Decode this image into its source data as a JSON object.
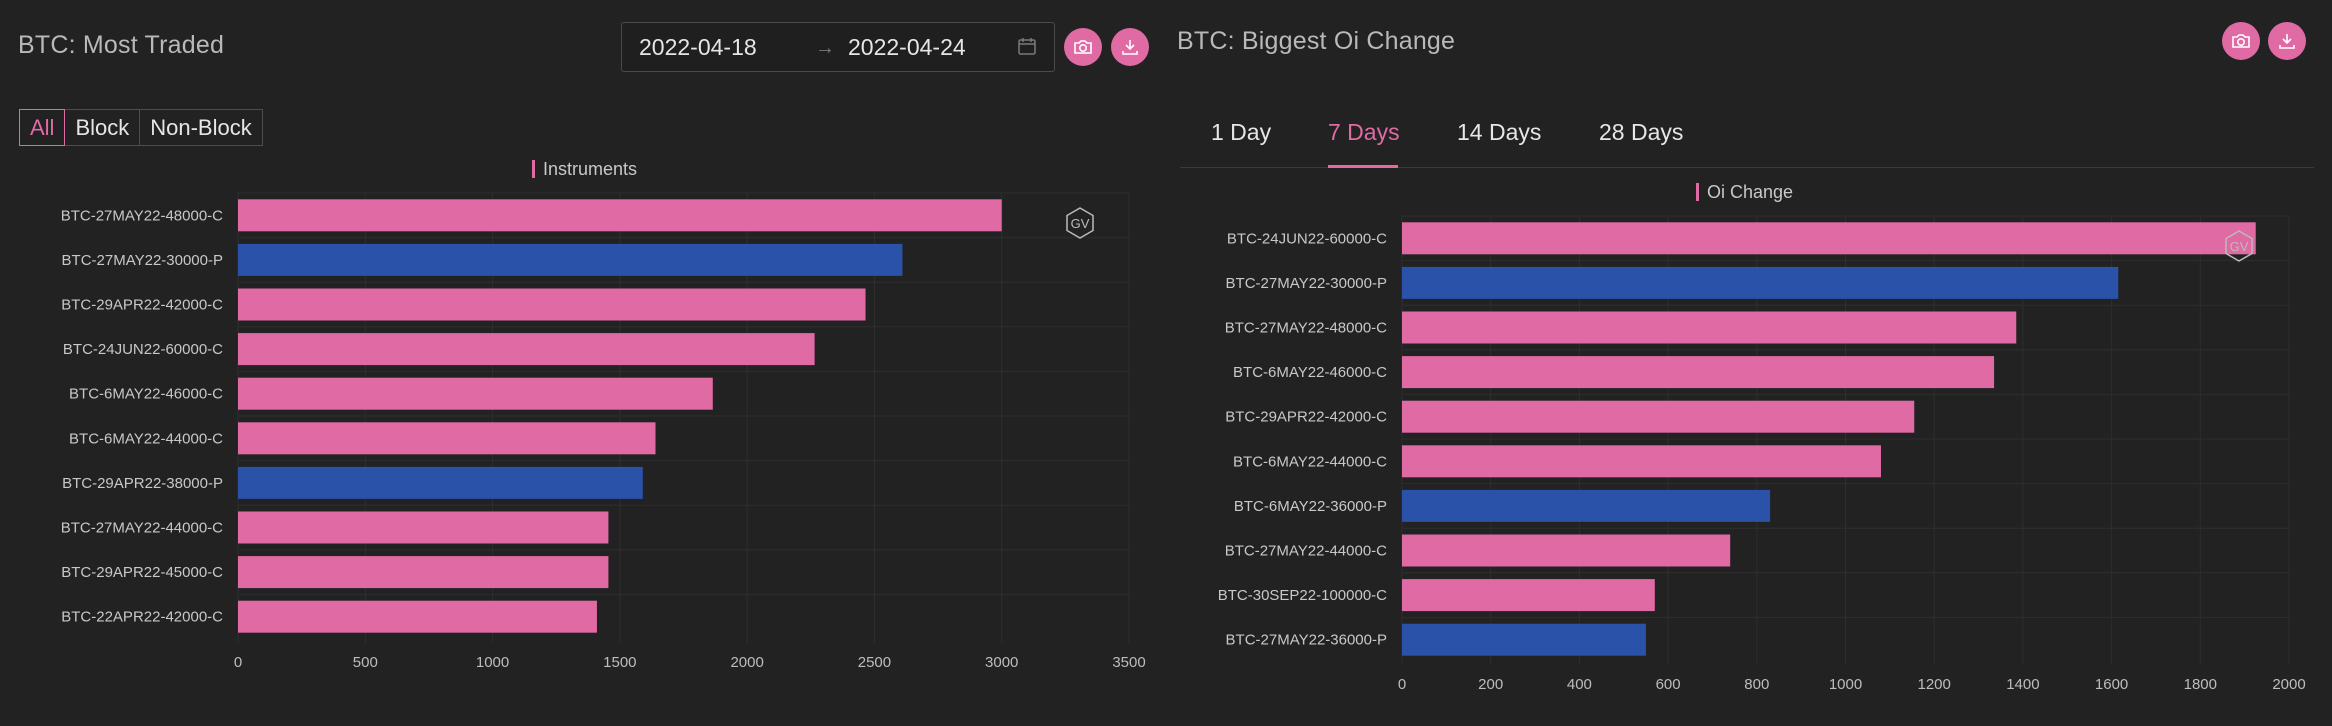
{
  "left": {
    "title": "BTC: Most Traded",
    "date_start": "2022-04-18",
    "date_end": "2022-04-24",
    "arrow": "→",
    "filters": [
      "All",
      "Block",
      "Non-Block"
    ],
    "active_filter": "All"
  },
  "right": {
    "title": "BTC: Biggest Oi Change",
    "tabs": [
      "1 Day",
      "7 Days",
      "14 Days",
      "28 Days"
    ],
    "active_tab": "7 Days"
  },
  "watermark": "GV",
  "colors": {
    "call": "#e06aa4",
    "put": "#2a52a8",
    "accent": "#e06aa4"
  },
  "chart_data": [
    {
      "type": "bar",
      "orientation": "horizontal",
      "legend": "Instruments",
      "categories": [
        "BTC-27MAY22-48000-C",
        "BTC-27MAY22-30000-P",
        "BTC-29APR22-42000-C",
        "BTC-24JUN22-60000-C",
        "BTC-6MAY22-46000-C",
        "BTC-6MAY22-44000-C",
        "BTC-29APR22-38000-P",
        "BTC-27MAY22-44000-C",
        "BTC-29APR22-45000-C",
        "BTC-22APR22-42000-C"
      ],
      "values": [
        3000,
        2610,
        2465,
        2265,
        1865,
        1640,
        1590,
        1455,
        1455,
        1410
      ],
      "bar_types": [
        "C",
        "P",
        "C",
        "C",
        "C",
        "C",
        "P",
        "C",
        "C",
        "C"
      ],
      "xlim": [
        0,
        3500
      ],
      "xticks": [
        0,
        500,
        1000,
        1500,
        2000,
        2500,
        3000,
        3500
      ],
      "grid": true
    },
    {
      "type": "bar",
      "orientation": "horizontal",
      "legend": "Oi Change",
      "categories": [
        "BTC-24JUN22-60000-C",
        "BTC-27MAY22-30000-P",
        "BTC-27MAY22-48000-C",
        "BTC-6MAY22-46000-C",
        "BTC-29APR22-42000-C",
        "BTC-6MAY22-44000-C",
        "BTC-6MAY22-36000-P",
        "BTC-27MAY22-44000-C",
        "BTC-30SEP22-100000-C",
        "BTC-27MAY22-36000-P"
      ],
      "values": [
        1925,
        1615,
        1385,
        1335,
        1155,
        1080,
        830,
        740,
        570,
        550
      ],
      "bar_types": [
        "C",
        "P",
        "C",
        "C",
        "C",
        "C",
        "P",
        "C",
        "C",
        "P"
      ],
      "xlim": [
        0,
        2000
      ],
      "xticks": [
        0,
        200,
        400,
        600,
        800,
        1000,
        1200,
        1400,
        1600,
        1800,
        2000
      ],
      "grid": true
    }
  ]
}
